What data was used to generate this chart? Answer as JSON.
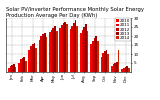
{
  "title": "Solar PV/Inverter Performance Monthly Solar Energy Production Average Per Day (KWh)",
  "title_fontsize": 3.8,
  "ylabel_fontsize": 3.0,
  "ylim": [
    0,
    30
  ],
  "yticks": [
    5,
    10,
    15,
    20,
    25,
    30
  ],
  "ytick_labels": [
    "5",
    "10",
    "15",
    "20",
    "25",
    "30"
  ],
  "ytick_fontsize": 3.0,
  "xtick_fontsize": 2.8,
  "background_color": "#ffffff",
  "grid_color": "#999999",
  "months": [
    "Jan",
    "Feb",
    "Mar",
    "Apr",
    "May",
    "Jun",
    "Jul",
    "Aug",
    "Sep",
    "Oct",
    "Nov",
    "Dec"
  ],
  "years": [
    "2010",
    "2011",
    "2012",
    "2013",
    "2014"
  ],
  "colors": [
    "#ff0000",
    "#dd0000",
    "#bb0000",
    "#990000",
    "#cc2200"
  ],
  "data": {
    "2010": [
      2.5,
      5.0,
      12.0,
      18.0,
      22.0,
      24.5,
      24.0,
      21.5,
      15.5,
      8.5,
      3.5,
      1.5
    ],
    "2011": [
      3.2,
      7.5,
      14.5,
      20.0,
      23.5,
      26.0,
      25.5,
      23.5,
      17.5,
      10.5,
      4.5,
      2.2
    ],
    "2012": [
      4.0,
      8.0,
      15.5,
      21.0,
      24.5,
      27.0,
      27.5,
      25.0,
      19.0,
      11.5,
      5.0,
      2.8
    ],
    "2013": [
      4.5,
      8.5,
      16.0,
      21.5,
      25.5,
      28.0,
      29.0,
      26.5,
      20.0,
      12.5,
      5.5,
      3.2
    ],
    "2014": [
      3.0,
      6.0,
      13.5,
      19.5,
      23.0,
      26.5,
      25.5,
      23.0,
      17.0,
      10.0,
      12.0,
      2.0
    ]
  },
  "legend_labels": [
    "2010",
    "2011",
    "2012",
    "2013",
    "2014"
  ],
  "legend_fontsize": 3.0
}
